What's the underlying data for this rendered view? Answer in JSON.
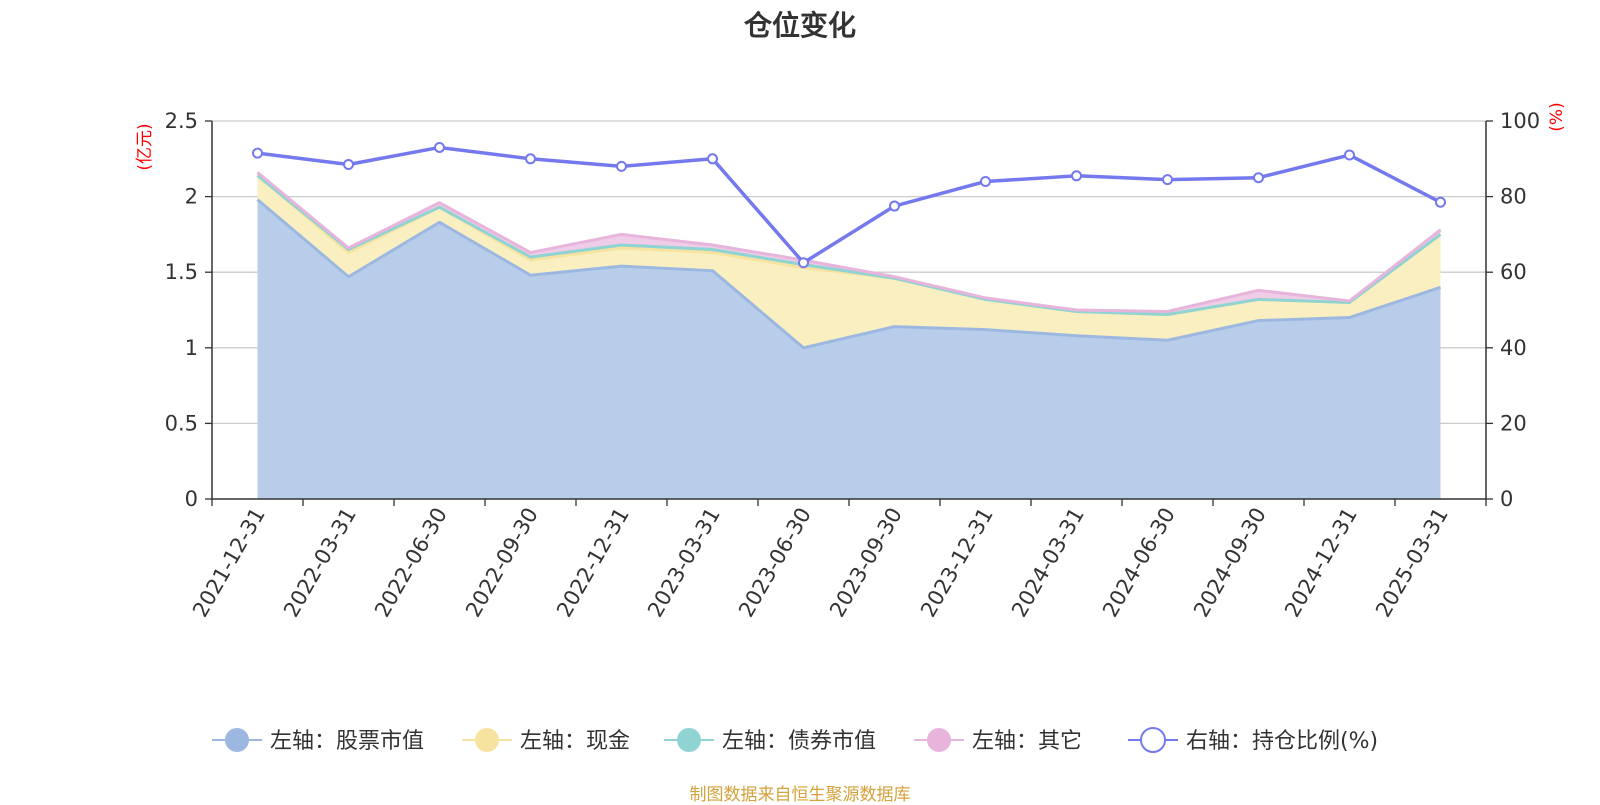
{
  "title": "仓位变化",
  "source": "制图数据来自恒生聚源数据库",
  "chart_data": {
    "type": "area",
    "categories": [
      "2021-12-31",
      "2022-03-31",
      "2022-06-30",
      "2022-09-30",
      "2022-12-31",
      "2023-03-31",
      "2023-06-30",
      "2023-09-30",
      "2023-12-31",
      "2024-03-31",
      "2024-06-30",
      "2024-09-30",
      "2024-12-31",
      "2025-03-31"
    ],
    "y_left": {
      "label": "(亿元)",
      "ticks": [
        "0",
        "0.5",
        "1",
        "1.5",
        "2",
        "2.5"
      ],
      "range": [
        0,
        2.5
      ]
    },
    "y_right": {
      "label": "(%)",
      "ticks": [
        "0",
        "20",
        "40",
        "60",
        "80",
        "100"
      ],
      "range": [
        0,
        100
      ]
    },
    "grid": true,
    "legend_position": "bottom",
    "series": [
      {
        "name": "左轴：股票市值",
        "axis": "left",
        "stacked": true,
        "color": "#9db8e0",
        "fill": "#b8cdea",
        "values": [
          1.98,
          1.47,
          1.83,
          1.48,
          1.54,
          1.51,
          1.0,
          1.14,
          1.12,
          1.08,
          1.05,
          1.18,
          1.2,
          1.4
        ]
      },
      {
        "name": "左轴：现金",
        "axis": "left",
        "stacked": true,
        "color": "#f7e3a0",
        "fill": "#faefc0",
        "values": [
          0.16,
          0.16,
          0.1,
          0.1,
          0.12,
          0.12,
          0.53,
          0.32,
          0.2,
          0.16,
          0.17,
          0.14,
          0.1,
          0.35
        ]
      },
      {
        "name": "左轴：债券市值",
        "axis": "left",
        "stacked": true,
        "color": "#8fd3d3",
        "fill": "#a6dcdc",
        "values": [
          0.0,
          0.02,
          0.0,
          0.02,
          0.02,
          0.02,
          0.02,
          0.0,
          0.0,
          0.0,
          0.0,
          0.0,
          0.0,
          0.0
        ]
      },
      {
        "name": "左轴：其它",
        "axis": "left",
        "stacked": true,
        "color": "#e7b4dc",
        "fill": "#efcde8",
        "values": [
          0.02,
          0.01,
          0.03,
          0.03,
          0.07,
          0.03,
          0.03,
          0.01,
          0.01,
          0.01,
          0.02,
          0.06,
          0.01,
          0.03
        ]
      },
      {
        "name": "右轴：持仓比例(%)",
        "axis": "right",
        "type": "line",
        "color": "#7479ee",
        "values": [
          91.5,
          88.5,
          93.0,
          90.0,
          88.0,
          90.0,
          62.5,
          77.5,
          84.0,
          85.5,
          84.5,
          85.0,
          91.0,
          78.5
        ]
      }
    ]
  }
}
